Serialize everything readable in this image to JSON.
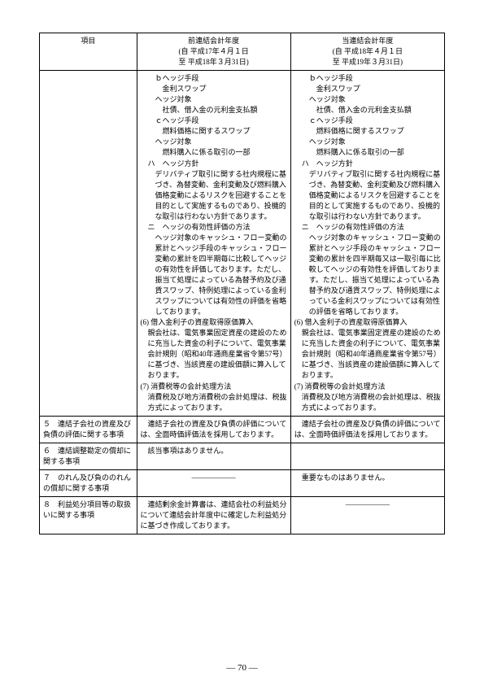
{
  "header": {
    "col1": "項目",
    "col2_line1": "前連結会計年度",
    "col2_line2": "(自  平成17年４月１日",
    "col2_line3": "至  平成18年３月31日)",
    "col3_line1": "当連結会計年度",
    "col3_line2": "(自  平成18年４月１日",
    "col3_line3": "至  平成19年３月31日)"
  },
  "row1": {
    "item": "",
    "prev": {
      "l1": "ｂヘッジ手段",
      "l2": "金利スワップ",
      "l3": "ヘッジ対象",
      "l4": "社債、借入金の元利金支払額",
      "l5": "ｃヘッジ手段",
      "l6": "燃料価格に関するスワップ",
      "l7": "ヘッジ対象",
      "l8": "燃料購入に係る取引の一部",
      "l9": "ハ　ヘッジ方針",
      "l10": "デリバティブ取引に関する社内規程に基づき、為替変動、金利変動及び燃料購入価格変動によるリスクを回避することを目的として実施するものであり、投機的な取引は行わない方針であります。",
      "l11": "ニ　ヘッジの有効性評価の方法",
      "l12": "ヘッジ対象のキャッシュ・フロー変動の累計とヘッジ手段のキャッシュ・フロー変動の累計を四半期毎に比較してヘッジの有効性を評価しております。ただし、振当て処理によっている為替予約及び通貨スワップ、特例処理によっている金利スワップについては有効性の評価を省略しております。",
      "l13": "(6) 借入金利子の資産取得原価算入",
      "l14": "親会社は、電気事業固定資産の建設のために充当した資金の利子について、電気事業会計規則（昭和40年通商産業省令第57号）に基づき、当該資産の建設価額に算入しております。",
      "l15": "(7) 消費税等の会計処理方法",
      "l16": "消費税及び地方消費税の会計処理は、税抜方式によっております。"
    },
    "curr": {
      "l1": "ｂヘッジ手段",
      "l2": "金利スワップ",
      "l3": "ヘッジ対象",
      "l4": "社債、借入金の元利金支払額",
      "l5": "ｃヘッジ手段",
      "l6": "燃料価格に関するスワップ",
      "l7": "ヘッジ対象",
      "l8": "燃料購入に係る取引の一部",
      "l9": "ハ　ヘッジ方針",
      "l10": "デリバティブ取引に関する社内規程に基づき、為替変動、金利変動及び燃料購入価格変動によるリスクを回避することを目的として実施するものであり、投機的な取引は行わない方針であります。",
      "l11": "ニ　ヘッジの有効性評価の方法",
      "l12": "ヘッジ対象のキャッシュ・フロー変動の累計とヘッジ手段のキャッシュ・フロー変動の累計を四半期毎又は一取引毎に比較してヘッジの有効性を評価しております。ただし、振当て処理によっている為替予約及び通貨スワップ、特例処理によっている金利スワップについては有効性の評価を省略しております。",
      "l13": "(6) 借入金利子の資産取得原価算入",
      "l14": "親会社は、電気事業固定資産の建設のために充当した資金の利子について、電気事業会計規則（昭和40年通商産業省令第57号）に基づき、当該資産の建設価額に算入しております。",
      "l15": "(7) 消費税等の会計処理方法",
      "l16": "消費税及び地方消費税の会計処理は、税抜方式によっております。"
    }
  },
  "row2": {
    "item": "５　連結子会社の資産及び負債の評価に関する事項",
    "prev": "　連結子会社の資産及び負債の評価については、全面時価評価法を採用しております。",
    "curr": "　連結子会社の資産及び負債の評価については、全面時価評価法を採用しております。"
  },
  "row3": {
    "item": "６　連結調整勘定の償却に関する事項",
    "prev": "　該当事項はありません。",
    "curr": ""
  },
  "row4": {
    "item": "７　のれん及び負ののれんの償却に関する事項",
    "prev": "――――――",
    "curr": "　重要なものはありません。"
  },
  "row5": {
    "item": "８　利益処分項目等の取扱いに関する事項",
    "prev": "　連結剰余金計算書は、連結会社の利益処分について連結会計年度中に確定した利益処分に基づき作成しております。",
    "curr": "――――――"
  },
  "pageNumber": "― 70 ―"
}
